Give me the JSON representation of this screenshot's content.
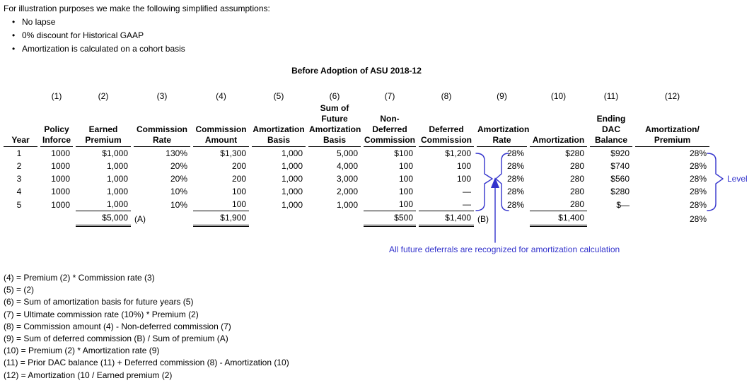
{
  "intro": {
    "heading": "For illustration purposes we make the following simplified assumptions:",
    "bullet_char": "•",
    "bullets": [
      "No lapse",
      "0% discount for Historical GAAP",
      "Amortization is calculated on a cohort basis"
    ]
  },
  "table": {
    "title": "Before Adoption of ASU 2018-12",
    "col_numbers": [
      "",
      "(1)",
      "(2)",
      "(3)",
      "(4)",
      "(5)",
      "(6)",
      "(7)",
      "(8)",
      "(9)",
      "(10)",
      "(11)",
      "(12)"
    ],
    "headers": [
      "Year",
      "Policy\nInforce",
      "Earned\nPremium",
      "Commission\nRate",
      "Commission\nAmount",
      "Amortization\nBasis",
      "Sum of\nFuture\nAmortization\nBasis",
      "Non-\nDeferred\nCommission",
      "Deferred\nCommission",
      "Amortization\nRate",
      "Amortization",
      "Ending\nDAC\nBalance",
      "Amortization/\nPremium"
    ],
    "rows": [
      [
        "1",
        "1000",
        "$1,000",
        "130%",
        "$1,300",
        "1,000",
        "5,000",
        "$100",
        "$1,200",
        "28%",
        "$280",
        "$920",
        "28%"
      ],
      [
        "2",
        "1000",
        "1,000",
        "20%",
        "200",
        "1,000",
        "4,000",
        "100",
        "100",
        "28%",
        "280",
        "$740",
        "28%"
      ],
      [
        "3",
        "1000",
        "1,000",
        "20%",
        "200",
        "1,000",
        "3,000",
        "100",
        "100",
        "28%",
        "280",
        "$560",
        "28%"
      ],
      [
        "4",
        "1000",
        "1,000",
        "10%",
        "100",
        "1,000",
        "2,000",
        "100",
        "—",
        "28%",
        "280",
        "$280",
        "28%"
      ],
      [
        "5",
        "1000",
        "1,000",
        "10%",
        "100",
        "1,000",
        "1,000",
        "100",
        "—",
        "28%",
        "280",
        "$—",
        "28%"
      ]
    ],
    "year5_underline_cols": [
      2,
      4,
      7,
      8,
      10
    ],
    "totals": {
      "values": [
        "",
        "",
        "$5,000",
        "",
        "$1,900",
        "",
        "",
        "$500",
        "$1,400",
        "",
        "$1,400",
        "",
        "28%"
      ],
      "suffixes": {
        "2": "(A)",
        "8": "(B)"
      },
      "double_underline_cols": [
        2,
        4,
        7,
        8,
        10
      ]
    }
  },
  "annotations": {
    "deferral_note": "All future deferrals are recognized for amortization calculation",
    "level_label": "Level",
    "blue": "#3333CC"
  },
  "footnotes": {
    "lines": [
      "(4) = Premium (2) * Commission rate (3)",
      "(5) = (2)",
      "(6) = Sum of amortization basis for future years (5)",
      "(7) = Ultimate commission rate (10%) * Premium (2)",
      "(8) = Commission amount (4) - Non-deferred commission (7)",
      "(9) = Sum of deferred commission (B) / Sum of premium (A)",
      "(10) = Premium (2) * Amortization rate (9)",
      "(11) = Prior DAC balance (11) + Deferred commission (8) - Amortization (10)",
      "(12) = Amortization (10 / Earned premium (2)"
    ]
  }
}
